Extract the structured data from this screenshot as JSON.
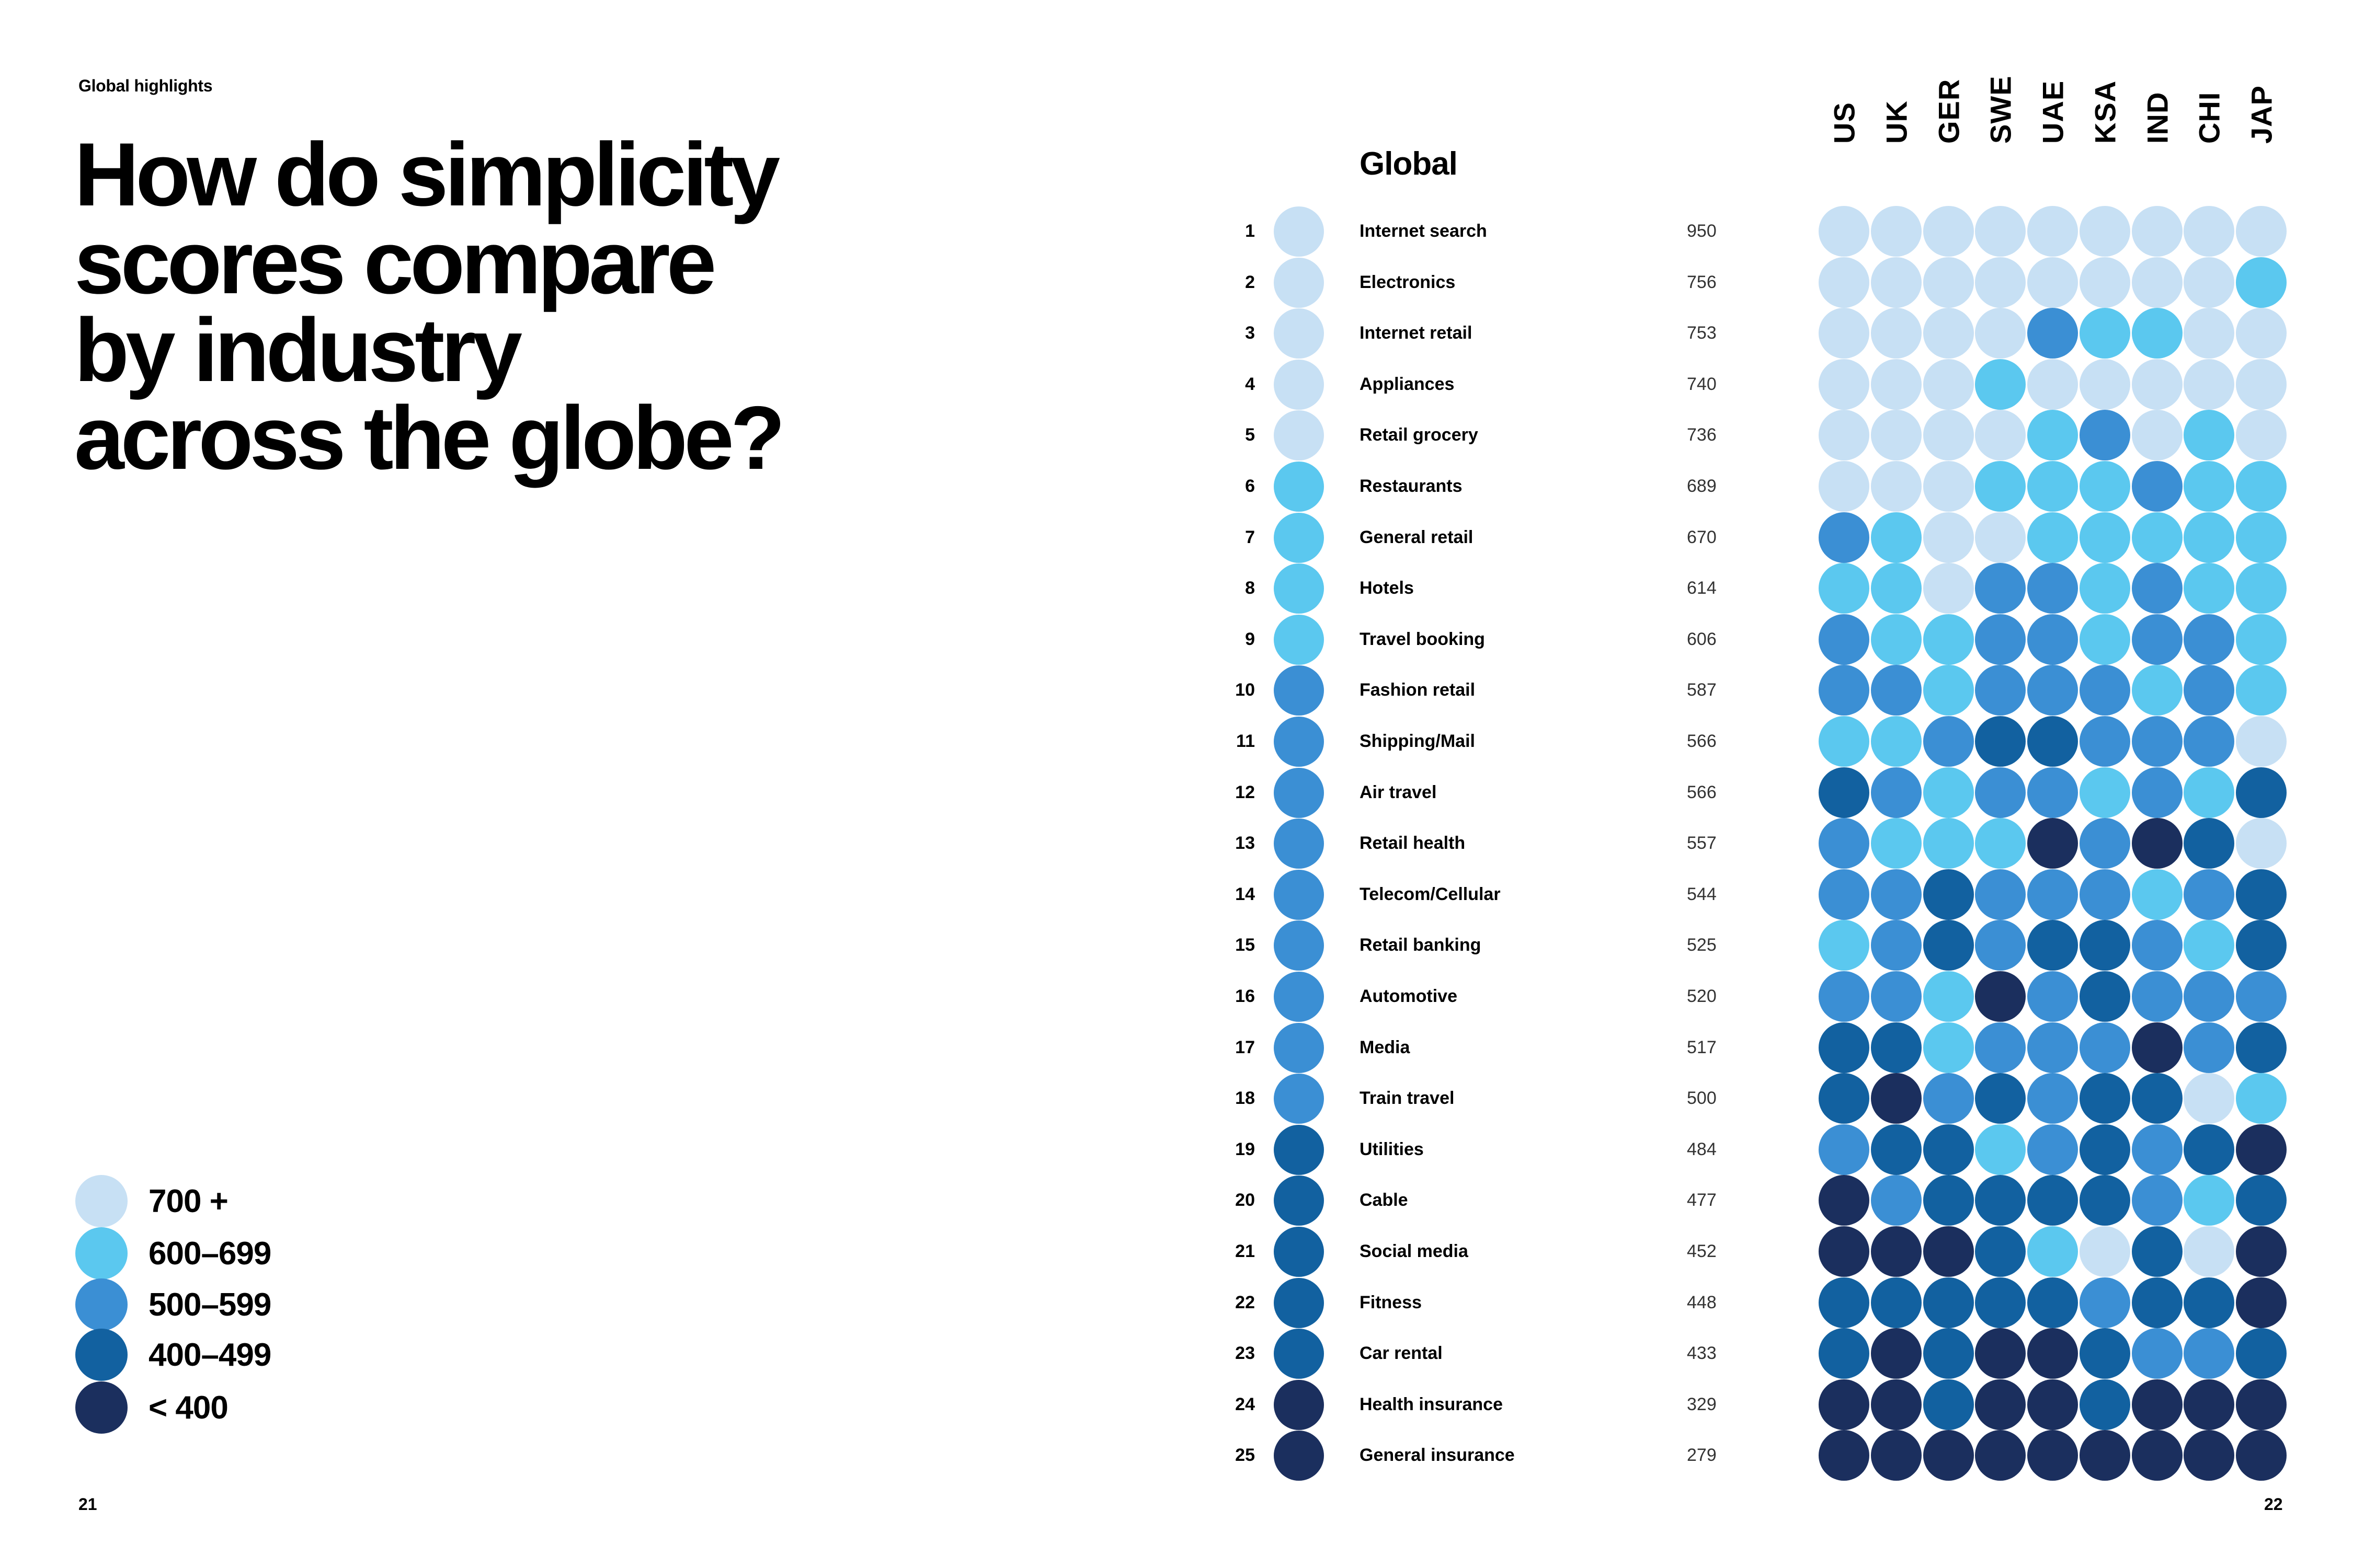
{
  "section_label": "Global highlights",
  "headline_lines": [
    "How do simplicity",
    "scores compare",
    "by industry",
    "across the globe?"
  ],
  "page_numbers": {
    "left": "21",
    "right": "22"
  },
  "colors": {
    "c700": "#c7e0f4",
    "c600": "#5bc8ef",
    "c500": "#3b8fd4",
    "c400": "#1261a0",
    "clow": "#1b2f5e"
  },
  "legend": [
    {
      "label": "700 +",
      "color_key": "c700"
    },
    {
      "label": "600–699",
      "color_key": "c600"
    },
    {
      "label": "500–599",
      "color_key": "c500"
    },
    {
      "label": "400–499",
      "color_key": "c400"
    },
    {
      "label": "< 400",
      "color_key": "clow"
    }
  ],
  "chart_data": {
    "type": "heatmap",
    "global_label": "Global",
    "countries": [
      "US",
      "UK",
      "GER",
      "SWE",
      "UAE",
      "KSA",
      "IND",
      "CHI",
      "JAP"
    ],
    "rows": [
      {
        "rank": "1",
        "industry": "Internet search",
        "score": 950,
        "global_color": "c700",
        "countries": [
          "c700",
          "c700",
          "c700",
          "c700",
          "c700",
          "c700",
          "c700",
          "c700",
          "c700"
        ]
      },
      {
        "rank": "2",
        "industry": "Electronics",
        "score": 756,
        "global_color": "c700",
        "countries": [
          "c700",
          "c700",
          "c700",
          "c700",
          "c700",
          "c700",
          "c700",
          "c700",
          "c600"
        ]
      },
      {
        "rank": "3",
        "industry": "Internet retail",
        "score": 753,
        "global_color": "c700",
        "countries": [
          "c700",
          "c700",
          "c700",
          "c700",
          "c500",
          "c600",
          "c600",
          "c700",
          "c700"
        ]
      },
      {
        "rank": "4",
        "industry": "Appliances",
        "score": 740,
        "global_color": "c700",
        "countries": [
          "c700",
          "c700",
          "c700",
          "c600",
          "c700",
          "c700",
          "c700",
          "c700",
          "c700"
        ]
      },
      {
        "rank": "5",
        "industry": "Retail grocery",
        "score": 736,
        "global_color": "c700",
        "countries": [
          "c700",
          "c700",
          "c700",
          "c700",
          "c600",
          "c500",
          "c700",
          "c600",
          "c700"
        ]
      },
      {
        "rank": "6",
        "industry": "Restaurants",
        "score": 689,
        "global_color": "c600",
        "countries": [
          "c700",
          "c700",
          "c700",
          "c600",
          "c600",
          "c600",
          "c500",
          "c600",
          "c600"
        ]
      },
      {
        "rank": "7",
        "industry": "General retail",
        "score": 670,
        "global_color": "c600",
        "countries": [
          "c500",
          "c600",
          "c700",
          "c700",
          "c600",
          "c600",
          "c600",
          "c600",
          "c600"
        ]
      },
      {
        "rank": "8",
        "industry": "Hotels",
        "score": 614,
        "global_color": "c600",
        "countries": [
          "c600",
          "c600",
          "c700",
          "c500",
          "c500",
          "c600",
          "c500",
          "c600",
          "c600"
        ]
      },
      {
        "rank": "9",
        "industry": "Travel booking",
        "score": 606,
        "global_color": "c600",
        "countries": [
          "c500",
          "c600",
          "c600",
          "c500",
          "c500",
          "c600",
          "c500",
          "c500",
          "c600"
        ]
      },
      {
        "rank": "10",
        "industry": "Fashion retail",
        "score": 587,
        "global_color": "c500",
        "countries": [
          "c500",
          "c500",
          "c600",
          "c500",
          "c500",
          "c500",
          "c600",
          "c500",
          "c600"
        ]
      },
      {
        "rank": "11",
        "industry": "Shipping/Mail",
        "score": 566,
        "global_color": "c500",
        "countries": [
          "c600",
          "c600",
          "c500",
          "c400",
          "c400",
          "c500",
          "c500",
          "c500",
          "c700"
        ]
      },
      {
        "rank": "12",
        "industry": "Air travel",
        "score": 566,
        "global_color": "c500",
        "countries": [
          "c400",
          "c500",
          "c600",
          "c500",
          "c500",
          "c600",
          "c500",
          "c600",
          "c400"
        ]
      },
      {
        "rank": "13",
        "industry": "Retail health",
        "score": 557,
        "global_color": "c500",
        "countries": [
          "c500",
          "c600",
          "c600",
          "c600",
          "clow",
          "c500",
          "clow",
          "c400",
          "c700"
        ]
      },
      {
        "rank": "14",
        "industry": "Telecom/Cellular",
        "score": 544,
        "global_color": "c500",
        "countries": [
          "c500",
          "c500",
          "c400",
          "c500",
          "c500",
          "c500",
          "c600",
          "c500",
          "c400"
        ]
      },
      {
        "rank": "15",
        "industry": "Retail banking",
        "score": 525,
        "global_color": "c500",
        "countries": [
          "c600",
          "c500",
          "c400",
          "c500",
          "c400",
          "c400",
          "c500",
          "c600",
          "c400"
        ]
      },
      {
        "rank": "16",
        "industry": "Automotive",
        "score": 520,
        "global_color": "c500",
        "countries": [
          "c500",
          "c500",
          "c600",
          "clow",
          "c500",
          "c400",
          "c500",
          "c500",
          "c500"
        ]
      },
      {
        "rank": "17",
        "industry": "Media",
        "score": 517,
        "global_color": "c500",
        "countries": [
          "c400",
          "c400",
          "c600",
          "c500",
          "c500",
          "c500",
          "clow",
          "c500",
          "c400"
        ]
      },
      {
        "rank": "18",
        "industry": "Train travel",
        "score": 500,
        "global_color": "c500",
        "countries": [
          "c400",
          "clow",
          "c500",
          "c400",
          "c500",
          "c400",
          "c400",
          "c700",
          "c600"
        ]
      },
      {
        "rank": "19",
        "industry": "Utilities",
        "score": 484,
        "global_color": "c400",
        "countries": [
          "c500",
          "c400",
          "c400",
          "c600",
          "c500",
          "c400",
          "c500",
          "c400",
          "clow"
        ]
      },
      {
        "rank": "20",
        "industry": "Cable",
        "score": 477,
        "global_color": "c400",
        "countries": [
          "clow",
          "c500",
          "c400",
          "c400",
          "c400",
          "c400",
          "c500",
          "c600",
          "c400"
        ]
      },
      {
        "rank": "21",
        "industry": "Social media",
        "score": 452,
        "global_color": "c400",
        "countries": [
          "clow",
          "clow",
          "clow",
          "c400",
          "c600",
          "c700",
          "c400",
          "c700",
          "clow"
        ]
      },
      {
        "rank": "22",
        "industry": "Fitness",
        "score": 448,
        "global_color": "c400",
        "countries": [
          "c400",
          "c400",
          "c400",
          "c400",
          "c400",
          "c500",
          "c400",
          "c400",
          "clow"
        ]
      },
      {
        "rank": "23",
        "industry": "Car rental",
        "score": 433,
        "global_color": "c400",
        "countries": [
          "c400",
          "clow",
          "c400",
          "clow",
          "clow",
          "c400",
          "c500",
          "c500",
          "c400"
        ]
      },
      {
        "rank": "24",
        "industry": "Health insurance",
        "score": 329,
        "global_color": "clow",
        "countries": [
          "clow",
          "clow",
          "c400",
          "clow",
          "clow",
          "c400",
          "clow",
          "clow",
          "clow"
        ]
      },
      {
        "rank": "25",
        "industry": "General insurance",
        "score": 279,
        "global_color": "clow",
        "countries": [
          "clow",
          "clow",
          "clow",
          "clow",
          "clow",
          "clow",
          "clow",
          "clow",
          "clow"
        ]
      }
    ]
  }
}
